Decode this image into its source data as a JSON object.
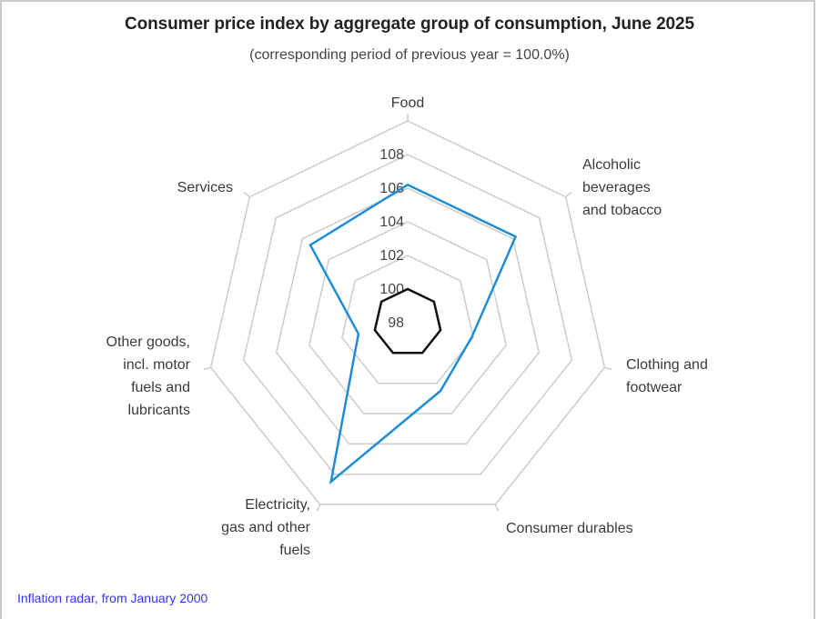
{
  "title": "Consumer price index by aggregate group of consumption, June 2025",
  "subtitle": "(corresponding period of previous year = 100.0%)",
  "footer_link": "Inflation radar, from January 2000",
  "colors": {
    "series": "#1f8dd6",
    "reference": "#111111",
    "grid": "#cccccc",
    "link": "#3333ff"
  },
  "chart_data": {
    "type": "radar",
    "title": "Consumer price index by aggregate group of consumption, June 2025",
    "subtitle": "(corresponding period of previous year = 100.0%)",
    "categories": [
      [
        "Food"
      ],
      [
        "Alcoholic",
        "beverages",
        "and tobacco"
      ],
      [
        "Clothing and",
        "footwear"
      ],
      [
        "Consumer durables"
      ],
      [
        "Electricity,",
        "gas and other",
        "fuels"
      ],
      [
        "Other goods,",
        "incl. motor",
        "fuels and",
        "lubricants"
      ],
      [
        "Services"
      ]
    ],
    "range": [
      98,
      110
    ],
    "tick_labels": [
      "98",
      "100",
      "102",
      "104",
      "106",
      "108"
    ],
    "tick_values": [
      98,
      100,
      102,
      104,
      106,
      108,
      110
    ],
    "series": [
      {
        "name": "June 2025",
        "values": [
          106.2,
          106.2,
          101.9,
          102.5,
          108.5,
          101.0,
          105.4
        ]
      },
      {
        "name": "Previous year",
        "values": [
          100,
          100,
          100,
          100,
          100,
          100,
          100
        ]
      }
    ],
    "grid": true,
    "legend": "none"
  }
}
